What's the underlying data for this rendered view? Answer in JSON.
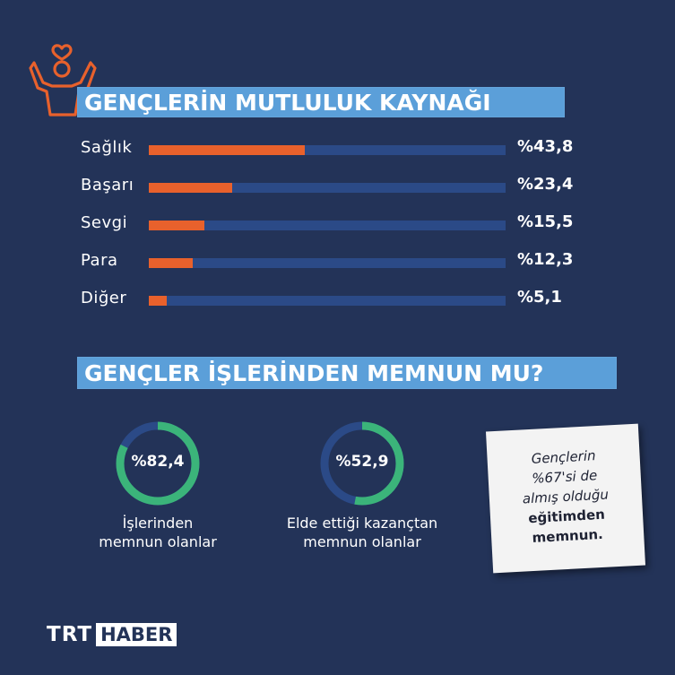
{
  "colors": {
    "background": "#233358",
    "banner": "#5b9fd9",
    "bar_fill": "#e8612c",
    "bar_track": "#2b4a87",
    "donut_fill": "#3bb47a",
    "donut_track": "#2b4a87",
    "icon": "#e8612c"
  },
  "icons": [
    "happy-person-heart-icon"
  ],
  "section1": {
    "title": "GENÇLERİN MUTLULUK KAYNAĞI"
  },
  "section2": {
    "title": "GENÇLER İŞLERİNDEN MEMNUN MU?"
  },
  "chart_data": [
    {
      "type": "bar",
      "orientation": "horizontal",
      "categories": [
        "Sağlık",
        "Başarı",
        "Sevgi",
        "Para",
        "Diğer"
      ],
      "values": [
        43.8,
        23.4,
        15.5,
        12.3,
        5.1
      ],
      "value_labels": [
        "%43,8",
        "%23,4",
        "%15,5",
        "%12,3",
        "%5,1"
      ],
      "xlim": [
        0,
        100
      ],
      "grid": false
    },
    {
      "type": "pie",
      "style": "donut",
      "charts": [
        {
          "value": 82.4,
          "value_label": "%82,4",
          "caption": [
            "İşlerinden",
            "memnun olanlar"
          ]
        },
        {
          "value": 52.9,
          "value_label": "%52,9",
          "caption": [
            "Elde ettiği kazançtan",
            "memnun olanlar"
          ]
        }
      ]
    }
  ],
  "note": {
    "line1": "Gençlerin",
    "line2": "%67'si de",
    "line3": "almış olduğu",
    "line4": "eğitimden",
    "line5": "memnun."
  },
  "brand": {
    "trt": "TRT",
    "haber": "HABER"
  }
}
